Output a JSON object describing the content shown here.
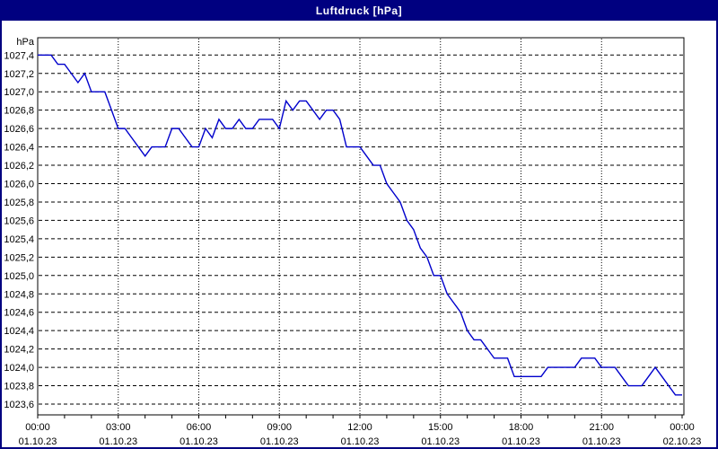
{
  "window": {
    "title": "Luftdruck [hPa]",
    "titlebar_bg": "#000080",
    "titlebar_text_color": "#ffffff",
    "border_color": "#000080",
    "background": "#ffffff"
  },
  "chart_data": {
    "type": "line",
    "title": "Luftdruck [hPa]",
    "y_unit_label": "hPa",
    "ylim": [
      1023.6,
      1027.4
    ],
    "ytick_step": 0.2,
    "decimal_separator": ",",
    "xlim_hours": [
      0,
      24
    ],
    "x_minor_tick_every_hours": 1,
    "x_major_ticks": [
      {
        "hour": 0,
        "time": "00:00",
        "date": "01.10.23"
      },
      {
        "hour": 3,
        "time": "03:00",
        "date": "01.10.23"
      },
      {
        "hour": 6,
        "time": "06:00",
        "date": "01.10.23"
      },
      {
        "hour": 9,
        "time": "09:00",
        "date": "01.10.23"
      },
      {
        "hour": 12,
        "time": "12:00",
        "date": "01.10.23"
      },
      {
        "hour": 15,
        "time": "15:00",
        "date": "01.10.23"
      },
      {
        "hour": 18,
        "time": "18:00",
        "date": "01.10.23"
      },
      {
        "hour": 21,
        "time": "21:00",
        "date": "01.10.23"
      },
      {
        "hour": 24,
        "time": "00:00",
        "date": "02.10.23"
      }
    ],
    "grid": true,
    "grid_color": "#000000",
    "line_color": "#0000cc",
    "series": [
      {
        "name": "Luftdruck",
        "x_start_hour": 0,
        "x_step_hours": 0.25,
        "values": [
          1027.4,
          1027.4,
          1027.4,
          1027.3,
          1027.3,
          1027.2,
          1027.1,
          1027.2,
          1027.0,
          1027.0,
          1027.0,
          1026.8,
          1026.6,
          1026.6,
          1026.5,
          1026.4,
          1026.3,
          1026.4,
          1026.4,
          1026.4,
          1026.6,
          1026.6,
          1026.5,
          1026.4,
          1026.4,
          1026.6,
          1026.5,
          1026.7,
          1026.6,
          1026.6,
          1026.7,
          1026.6,
          1026.6,
          1026.7,
          1026.7,
          1026.7,
          1026.6,
          1026.9,
          1026.8,
          1026.9,
          1026.9,
          1026.8,
          1026.7,
          1026.8,
          1026.8,
          1026.7,
          1026.4,
          1026.4,
          1026.4,
          1026.3,
          1026.2,
          1026.2,
          1026.0,
          1025.9,
          1025.8,
          1025.6,
          1025.5,
          1025.3,
          1025.2,
          1025.0,
          1025.0,
          1024.8,
          1024.7,
          1024.6,
          1024.4,
          1024.3,
          1024.3,
          1024.2,
          1024.1,
          1024.1,
          1024.1,
          1023.9,
          1023.9,
          1023.9,
          1023.9,
          1023.9,
          1024.0,
          1024.0,
          1024.0,
          1024.0,
          1024.0,
          1024.1,
          1024.1,
          1024.1,
          1024.0,
          1024.0,
          1024.0,
          1023.9,
          1023.8,
          1023.8,
          1023.8,
          1023.9,
          1024.0,
          1023.9,
          1023.8,
          1023.7,
          1023.7
        ]
      }
    ]
  }
}
